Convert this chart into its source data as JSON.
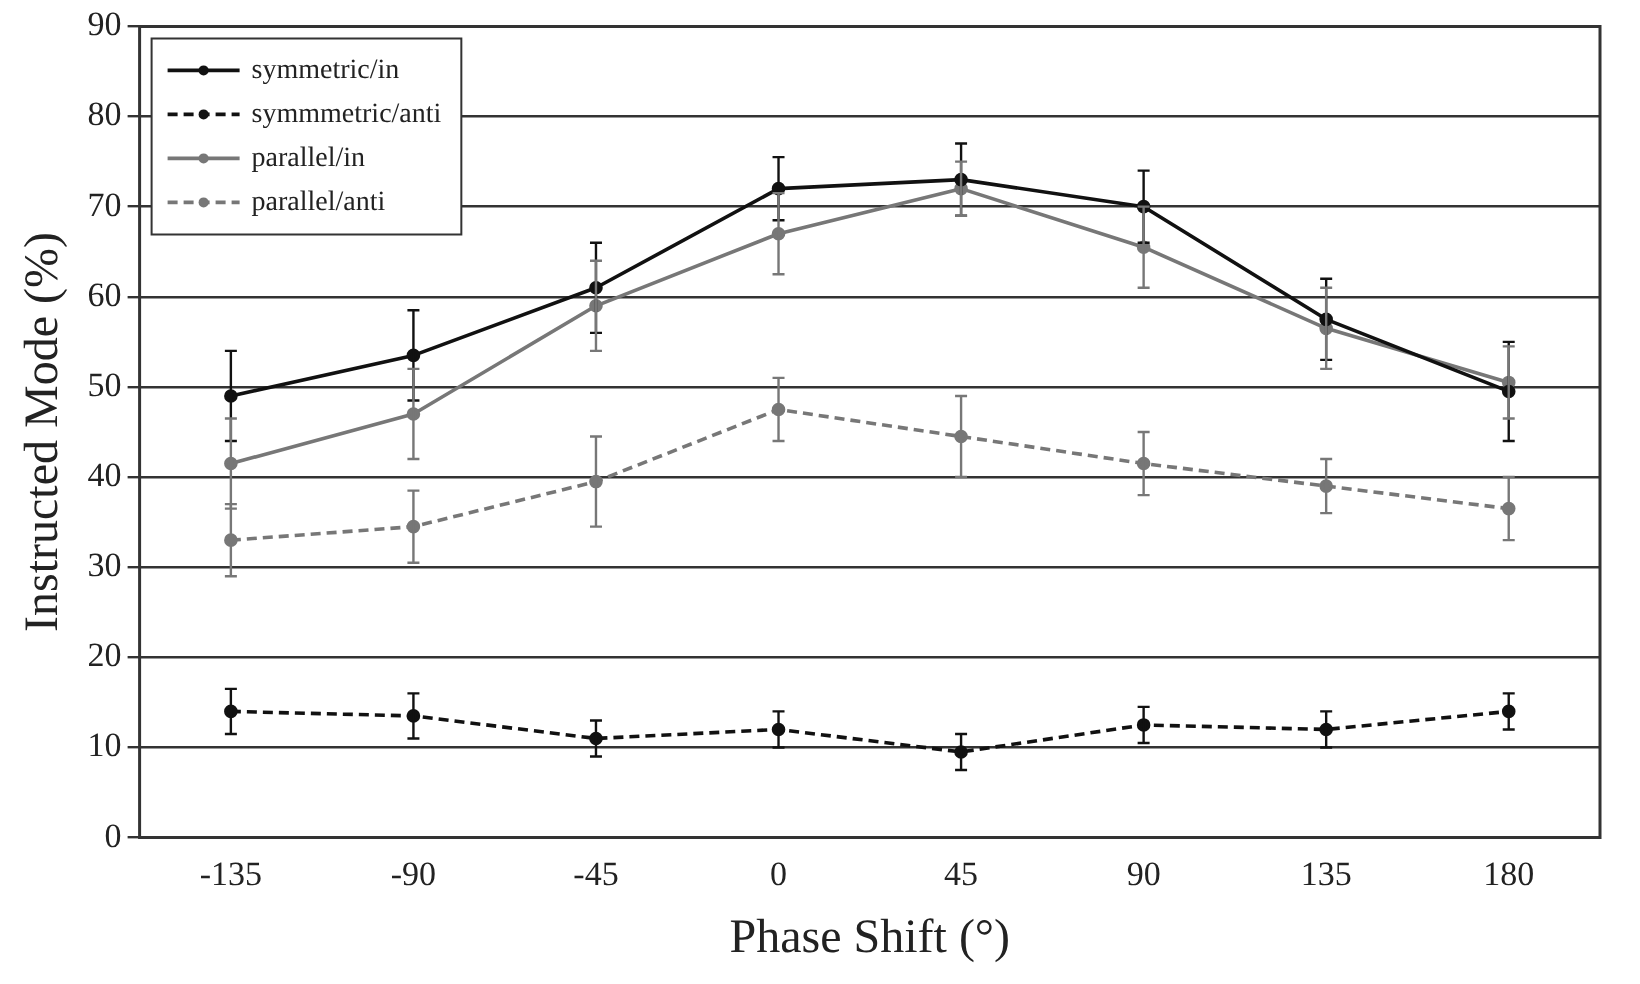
{
  "chart_data": {
    "type": "line",
    "xlabel": "Phase Shift (°)",
    "ylabel": "Instructed Mode (%)",
    "categories": [
      "-135",
      "-90",
      "-45",
      "0",
      "45",
      "90",
      "135",
      "180"
    ],
    "series": [
      {
        "name": "symmetric/in",
        "color": "#111111",
        "line_style": "solid",
        "values": [
          49,
          53.5,
          61,
          72,
          73,
          70,
          57.5,
          49.5
        ],
        "errors": [
          5,
          5,
          5,
          3.5,
          4,
          4,
          4.5,
          5.5
        ]
      },
      {
        "name": "symmmetric/anti",
        "color": "#111111",
        "line_style": "dashed",
        "values": [
          14,
          13.5,
          11,
          12,
          9.5,
          12.5,
          12,
          14
        ],
        "errors": [
          2.5,
          2.5,
          2,
          2,
          2,
          2,
          2,
          2
        ]
      },
      {
        "name": "parallel/in",
        "color": "#777777",
        "line_style": "solid",
        "values": [
          41.5,
          47,
          59,
          67,
          72,
          65.5,
          56.5,
          50.5
        ],
        "errors": [
          5,
          5,
          5,
          4.5,
          3,
          4.5,
          4.5,
          4
        ]
      },
      {
        "name": "parallel/anti",
        "color": "#777777",
        "line_style": "dashed",
        "values": [
          33,
          34.5,
          39.5,
          47.5,
          44.5,
          41.5,
          39,
          36.5
        ],
        "errors": [
          4,
          4,
          5,
          3.5,
          4.5,
          3.5,
          3,
          3.5
        ]
      }
    ],
    "ylim": [
      0,
      90
    ],
    "yticks": [
      0,
      10,
      20,
      30,
      40,
      50,
      60,
      70,
      80,
      90
    ],
    "grid": "y",
    "legend": "top left",
    "marker": "circle"
  }
}
